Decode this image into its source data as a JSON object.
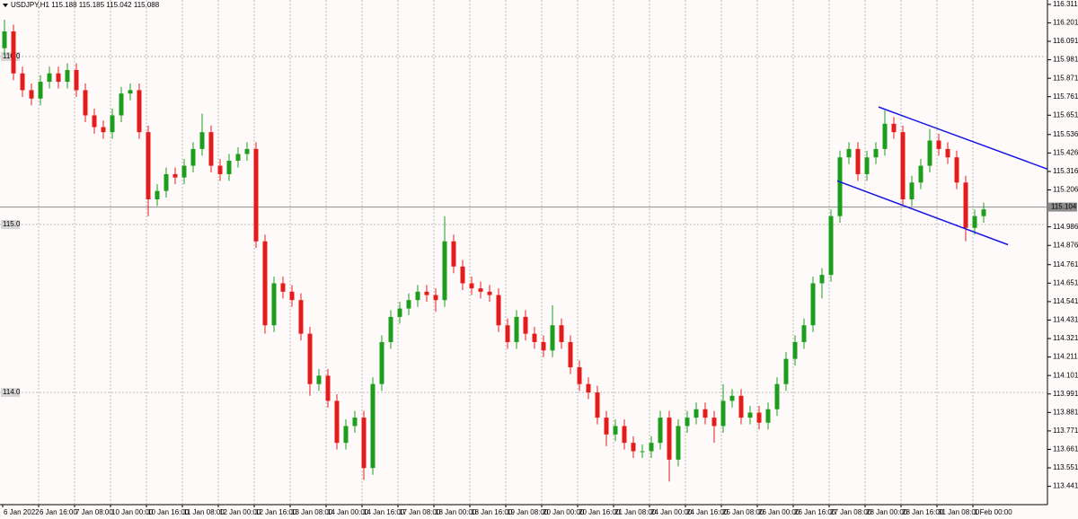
{
  "chart_data": {
    "type": "candlestick",
    "title": "USDJPY,H1  115.188 115.185 115.042 115.088",
    "categories": [
      "6 Jan 2022",
      null,
      null,
      null,
      "6 Jan 16:00",
      null,
      null,
      null,
      "7 Jan 08:00",
      null,
      null,
      null,
      "10 Jan 00:00",
      null,
      null,
      null,
      "10 Jan 16:00",
      null,
      null,
      null,
      "11 Jan 08:00",
      null,
      null,
      null,
      "12 Jan 00:00",
      null,
      null,
      null,
      "12 Jan 16:00",
      null,
      null,
      null,
      "13 Jan 08:00",
      null,
      null,
      null,
      "14 Jan 00:00",
      null,
      null,
      null,
      "14 Jan 16:00",
      null,
      null,
      null,
      "17 Jan 08:00",
      null,
      null,
      null,
      "18 Jan 00:00",
      null,
      null,
      null,
      "18 Jan 16:00",
      null,
      null,
      null,
      "19 Jan 08:00",
      null,
      null,
      null,
      "20 Jan 00:00",
      null,
      null,
      null,
      "20 Jan 16:00",
      null,
      null,
      null,
      "21 Jan 08:00",
      null,
      null,
      null,
      "24 Jan 00:00",
      null,
      null,
      null,
      "24 Jan 16:00",
      null,
      null,
      null,
      "25 Jan 08:00",
      null,
      null,
      null,
      "26 Jan 00:00",
      null,
      null,
      null,
      "26 Jan 16:00",
      null,
      null,
      null,
      "27 Jan 08:00",
      null,
      null,
      null,
      "28 Jan 00:00",
      null,
      null,
      null,
      "28 Jan 16:00",
      null,
      null,
      null,
      "31 Jan 08:00",
      null,
      null,
      null,
      "1 Feb 00:00",
      null
    ],
    "open": [
      116.05,
      116.15,
      115.9,
      115.8,
      115.75,
      115.85,
      115.9,
      115.85,
      115.92,
      115.8,
      115.65,
      115.58,
      115.55,
      115.65,
      115.78,
      115.8,
      115.55,
      115.15,
      115.2,
      115.3,
      115.28,
      115.35,
      115.45,
      115.55,
      115.35,
      115.3,
      115.38,
      115.42,
      115.45,
      114.9,
      114.4,
      114.65,
      114.6,
      114.55,
      114.35,
      114.05,
      114.1,
      113.95,
      113.7,
      113.8,
      113.85,
      113.55,
      114.05,
      114.3,
      114.45,
      114.5,
      114.55,
      114.6,
      114.58,
      114.55,
      114.9,
      114.75,
      114.65,
      114.62,
      114.6,
      114.58,
      114.4,
      114.3,
      114.45,
      114.35,
      114.3,
      114.25,
      114.4,
      114.3,
      114.15,
      114.05,
      114.0,
      113.85,
      113.75,
      113.8,
      113.7,
      113.65,
      113.65,
      113.7,
      113.85,
      113.6,
      113.8,
      113.85,
      113.9,
      113.85,
      113.8,
      113.95,
      113.98,
      113.85,
      113.88,
      113.82,
      113.9,
      114.05,
      114.2,
      114.3,
      114.4,
      114.65,
      114.7,
      115.05,
      115.4,
      115.45,
      115.3,
      115.4,
      115.45,
      115.6,
      115.55,
      115.15,
      115.25,
      115.35,
      115.5,
      115.45,
      115.4,
      115.25,
      114.98,
      115.05
    ],
    "high": [
      116.22,
      116.19,
      115.94,
      115.84,
      115.89,
      115.94,
      115.94,
      115.96,
      115.96,
      115.84,
      115.69,
      115.62,
      115.69,
      115.82,
      115.84,
      115.84,
      115.59,
      115.24,
      115.34,
      115.34,
      115.39,
      115.49,
      115.66,
      115.59,
      115.39,
      115.42,
      115.46,
      115.49,
      115.49,
      114.94,
      114.69,
      114.69,
      114.64,
      114.59,
      114.39,
      114.14,
      114.14,
      113.99,
      113.84,
      113.89,
      113.89,
      114.09,
      114.34,
      114.49,
      114.54,
      114.59,
      114.64,
      114.64,
      114.62,
      115.05,
      114.94,
      114.79,
      114.69,
      114.66,
      114.64,
      114.62,
      114.44,
      114.49,
      114.49,
      114.39,
      114.34,
      114.52,
      114.44,
      114.34,
      114.19,
      114.09,
      114.04,
      113.89,
      113.84,
      113.84,
      113.74,
      113.69,
      113.74,
      113.89,
      113.89,
      113.84,
      113.89,
      113.94,
      113.94,
      113.89,
      114.05,
      114.02,
      114.02,
      113.92,
      113.92,
      113.94,
      114.09,
      114.24,
      114.34,
      114.44,
      114.69,
      114.74,
      115.09,
      115.44,
      115.49,
      115.49,
      115.44,
      115.49,
      115.68,
      115.64,
      115.59,
      115.29,
      115.39,
      115.57,
      115.54,
      115.49,
      115.44,
      115.29,
      115.09,
      115.13
    ],
    "low": [
      116.01,
      115.86,
      115.76,
      115.71,
      115.71,
      115.81,
      115.81,
      115.81,
      115.76,
      115.61,
      115.54,
      115.51,
      115.51,
      115.61,
      115.74,
      115.51,
      115.05,
      115.11,
      115.16,
      115.24,
      115.24,
      115.31,
      115.41,
      115.31,
      115.26,
      115.26,
      115.34,
      115.38,
      114.86,
      114.35,
      114.36,
      114.56,
      114.51,
      114.31,
      113.98,
      114.01,
      113.91,
      113.66,
      113.66,
      113.76,
      113.48,
      113.51,
      114.01,
      114.26,
      114.41,
      114.46,
      114.51,
      114.54,
      114.48,
      114.51,
      114.71,
      114.61,
      114.58,
      114.56,
      114.54,
      114.36,
      114.26,
      114.26,
      114.31,
      114.26,
      114.21,
      114.21,
      114.26,
      114.11,
      114.01,
      113.96,
      113.81,
      113.68,
      113.71,
      113.66,
      113.61,
      113.61,
      113.61,
      113.66,
      113.47,
      113.56,
      113.76,
      113.81,
      113.81,
      113.7,
      113.76,
      113.91,
      113.81,
      113.81,
      113.78,
      113.78,
      113.86,
      114.01,
      114.16,
      114.26,
      114.36,
      114.56,
      114.66,
      115.01,
      115.36,
      115.26,
      115.26,
      115.36,
      115.41,
      115.51,
      115.11,
      115.11,
      115.21,
      115.31,
      115.41,
      115.36,
      115.21,
      114.9,
      114.94,
      115.01
    ],
    "close": [
      116.15,
      115.9,
      115.8,
      115.75,
      115.85,
      115.9,
      115.85,
      115.92,
      115.8,
      115.65,
      115.58,
      115.55,
      115.65,
      115.78,
      115.8,
      115.55,
      115.15,
      115.2,
      115.3,
      115.28,
      115.35,
      115.45,
      115.55,
      115.35,
      115.3,
      115.38,
      115.42,
      115.45,
      114.9,
      114.4,
      114.65,
      114.6,
      114.55,
      114.35,
      114.05,
      114.1,
      113.95,
      113.7,
      113.8,
      113.85,
      113.55,
      114.05,
      114.3,
      114.45,
      114.5,
      114.55,
      114.6,
      114.58,
      114.55,
      114.9,
      114.75,
      114.65,
      114.62,
      114.6,
      114.58,
      114.4,
      114.3,
      114.45,
      114.35,
      114.3,
      114.25,
      114.4,
      114.3,
      114.15,
      114.05,
      114.0,
      113.85,
      113.75,
      113.8,
      113.7,
      113.65,
      113.65,
      113.7,
      113.85,
      113.6,
      113.8,
      113.85,
      113.9,
      113.85,
      113.8,
      113.95,
      113.98,
      113.85,
      113.88,
      113.82,
      113.9,
      114.05,
      114.2,
      114.3,
      114.4,
      114.65,
      114.7,
      115.05,
      115.4,
      115.45,
      115.3,
      115.4,
      115.45,
      115.6,
      115.55,
      115.15,
      115.25,
      115.35,
      115.5,
      115.45,
      115.4,
      115.25,
      114.98,
      115.05,
      115.09
    ],
    "up_color": "#1e9e1e",
    "down_color": "#e41c1c",
    "ylim": [
      113.332,
      116.337
    ],
    "yticks": [
      116.311,
      116.201,
      116.091,
      115.981,
      115.871,
      115.761,
      115.651,
      115.536,
      115.426,
      115.316,
      115.206,
      114.986,
      114.876,
      114.761,
      114.651,
      114.541,
      114.431,
      114.321,
      114.211,
      114.101,
      113.991,
      113.881,
      113.771,
      113.661,
      113.551,
      113.441
    ],
    "levels": [
      {
        "value": 116,
        "label": "116.0"
      },
      {
        "value": 115,
        "label": "115.0"
      },
      {
        "value": 114,
        "label": "114.0"
      }
    ],
    "current_price": 115.104,
    "channels": [
      {
        "start": 115.7,
        "end": 115.33
      },
      {
        "start": 115.26,
        "end": 114.88
      }
    ],
    "channel_color": "#1414e6",
    "grid": true
  }
}
